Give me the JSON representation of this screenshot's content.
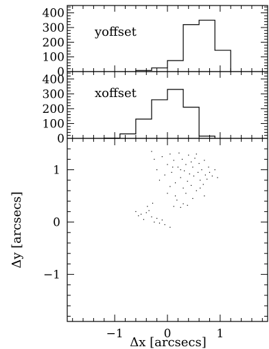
{
  "chart_data": [
    {
      "type": "histogram",
      "label": "yoffset",
      "x": [
        -0.6,
        -0.3,
        0.0,
        0.3,
        0.6,
        0.9
      ],
      "values": [
        8,
        25,
        75,
        320,
        350,
        145
      ],
      "ylim": [
        0,
        450
      ],
      "yticks": [
        "0",
        "100",
        "200",
        "300",
        "400"
      ]
    },
    {
      "type": "histogram",
      "label": "xoffset",
      "x": [
        -1.2,
        -0.9,
        -0.6,
        -0.3,
        0.0,
        0.3,
        0.6
      ],
      "values": [
        2,
        30,
        130,
        260,
        330,
        210,
        15
      ],
      "ylim": [
        0,
        450
      ],
      "yticks": [
        "0",
        "100",
        "200",
        "300",
        "400"
      ]
    },
    {
      "type": "scatter",
      "xlabel": "Δx [arcsecs]",
      "ylabel": "Δy [arcsecs]",
      "xlim": [
        -1.9,
        1.9
      ],
      "ylim": [
        -1.9,
        1.6
      ],
      "xticks": [
        "−1",
        "0",
        "1"
      ],
      "yticks": [
        "−1",
        "0",
        "1"
      ],
      "points": [
        [
          -0.6,
          0.2
        ],
        [
          -0.55,
          0.12
        ],
        [
          -0.45,
          0.05
        ],
        [
          -0.4,
          0.18
        ],
        [
          -0.38,
          0.3
        ],
        [
          -0.3,
          0.1
        ],
        [
          -0.25,
          0.0
        ],
        [
          -0.2,
          0.07
        ],
        [
          -0.15,
          -0.02
        ],
        [
          -0.1,
          0.04
        ],
        [
          -0.05,
          -0.05
        ],
        [
          0.05,
          -0.1
        ],
        [
          -0.35,
          0.22
        ],
        [
          -0.5,
          0.15
        ],
        [
          -0.28,
          0.36
        ],
        [
          0.12,
          0.3
        ],
        [
          0.18,
          0.42
        ],
        [
          0.25,
          0.28
        ],
        [
          0.3,
          0.35
        ],
        [
          0.38,
          0.32
        ],
        [
          -0.3,
          1.35
        ],
        [
          -0.25,
          1.2
        ],
        [
          -0.2,
          1.0
        ],
        [
          -0.1,
          1.25
        ],
        [
          -0.05,
          0.9
        ],
        [
          0.0,
          1.1
        ],
        [
          0.05,
          1.3
        ],
        [
          0.08,
          0.95
        ],
        [
          0.12,
          1.18
        ],
        [
          0.15,
          0.75
        ],
        [
          0.2,
          1.05
        ],
        [
          0.22,
          1.32
        ],
        [
          0.25,
          0.85
        ],
        [
          0.28,
          1.2
        ],
        [
          0.3,
          0.65
        ],
        [
          0.32,
          0.98
        ],
        [
          0.35,
          1.1
        ],
        [
          0.38,
          0.78
        ],
        [
          0.4,
          1.28
        ],
        [
          0.42,
          0.92
        ],
        [
          0.45,
          0.7
        ],
        [
          0.48,
          1.05
        ],
        [
          0.5,
          0.88
        ],
        [
          0.52,
          1.22
        ],
        [
          0.55,
          0.6
        ],
        [
          0.58,
          0.95
        ],
        [
          0.6,
          1.12
        ],
        [
          0.62,
          0.8
        ],
        [
          0.65,
          1.0
        ],
        [
          0.68,
          0.72
        ],
        [
          0.7,
          1.18
        ],
        [
          0.72,
          0.9
        ],
        [
          0.75,
          0.82
        ],
        [
          0.78,
          1.05
        ],
        [
          0.8,
          0.95
        ],
        [
          0.85,
          0.88
        ],
        [
          0.9,
          1.0
        ],
        [
          0.95,
          0.85
        ],
        [
          0.55,
          1.3
        ],
        [
          0.45,
          1.15
        ],
        [
          0.35,
          0.55
        ],
        [
          0.15,
          0.5
        ],
        [
          0.05,
          0.68
        ],
        [
          -0.15,
          0.8
        ],
        [
          0.0,
          0.55
        ],
        [
          0.62,
          0.65
        ],
        [
          0.7,
          0.5
        ],
        [
          0.48,
          0.45
        ],
        [
          0.25,
          1.0
        ],
        [
          0.1,
          1.05
        ]
      ]
    }
  ]
}
